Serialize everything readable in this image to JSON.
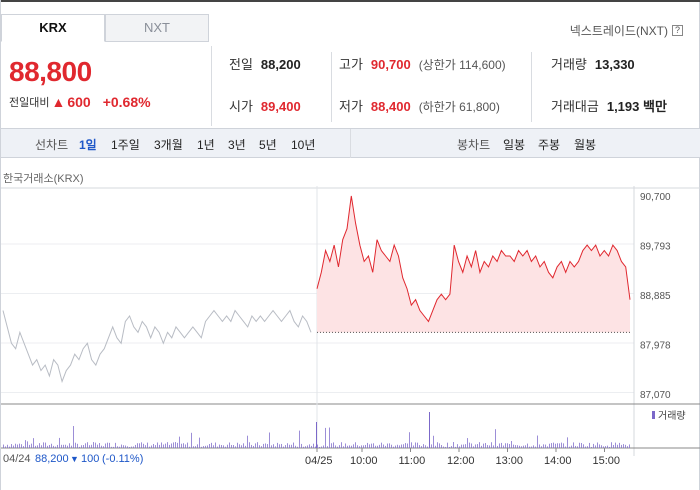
{
  "tabs": [
    {
      "label": "KRX",
      "active": true
    },
    {
      "label": "NXT",
      "active": false
    }
  ],
  "nxt_link": {
    "label": "넥스트레이드(NXT)",
    "help": "?"
  },
  "quote": {
    "price": "88,800",
    "change_label": "전일대비",
    "change_arrow": "▲",
    "change_value": "600",
    "change_pct": "+0.68%"
  },
  "stats": {
    "prev_close": {
      "label": "전일",
      "value": "88,200"
    },
    "open": {
      "label": "시가",
      "value": "89,400"
    },
    "high": {
      "label": "고가",
      "value": "90,700",
      "sub": "(상한가 114,600)"
    },
    "low": {
      "label": "저가",
      "value": "88,400",
      "sub": "(하한가 61,800)"
    },
    "volume": {
      "label": "거래량",
      "value": "13,330"
    },
    "amount": {
      "label": "거래대금",
      "value": "1,193 백만"
    }
  },
  "period": {
    "line_label": "선차트",
    "line_options": [
      "1일",
      "1주일",
      "3개월",
      "1년",
      "3년",
      "5년",
      "10년"
    ],
    "selected": "1일",
    "candle_label": "봉차트",
    "candle_options": [
      "일봉",
      "주봉",
      "월봉"
    ]
  },
  "exchange_label": "한국거래소(KRX)",
  "volume_legend": "거래량",
  "colors": {
    "up": "#e0282f",
    "down": "#1e57c8",
    "prev_line": "#b8bcc4",
    "fill": "#fde3e4",
    "volume": "#7b68c9"
  },
  "chart_data": {
    "type": "line",
    "y_ticks": [
      "90,700",
      "89,793",
      "88,885",
      "87,978",
      "87,070"
    ],
    "ylim": [
      87070,
      90700
    ],
    "x_ticks": [
      "04/25",
      "10:00",
      "11:00",
      "12:00",
      "13:00",
      "14:00",
      "15:00"
    ],
    "series": [
      {
        "name": "04/24",
        "values": [
          88600,
          88300,
          88000,
          87900,
          88200,
          88000,
          87800,
          87600,
          87700,
          87500,
          87600,
          87400,
          87700,
          87600,
          87300,
          87500,
          87600,
          87800,
          87700,
          87900,
          88000,
          87700,
          87600,
          87800,
          87900,
          88100,
          88300,
          88100,
          88000,
          88400,
          88500,
          88300,
          88200,
          88400,
          88300,
          88100,
          88300,
          88200,
          88000,
          88200,
          88100,
          88300,
          88200,
          88100,
          88200,
          88300,
          88200,
          88100,
          88400,
          88500,
          88600,
          88500,
          88400,
          88500,
          88400,
          88600,
          88500,
          88400,
          88300,
          88500,
          88400,
          88500,
          88400,
          88500,
          88600,
          88500,
          88400,
          88500,
          88600,
          88400,
          88300,
          88500,
          88400,
          88200
        ]
      },
      {
        "name": "04/25",
        "values": [
          89000,
          89300,
          89700,
          89500,
          89800,
          89400,
          89900,
          90100,
          90700,
          90200,
          89800,
          89500,
          89600,
          89300,
          89900,
          89700,
          89600,
          89500,
          89800,
          89600,
          89200,
          89000,
          88700,
          88800,
          88600,
          88500,
          88400,
          88600,
          88800,
          88900,
          88800,
          88900,
          89800,
          89500,
          89300,
          89600,
          89400,
          89700,
          89300,
          89500,
          89400,
          89600,
          89500,
          89700,
          89600,
          89600,
          89500,
          89700,
          89600,
          89700,
          89500,
          89600,
          89400,
          89500,
          89300,
          89200,
          89400,
          89500,
          89300,
          89500,
          89400,
          89500,
          89700,
          89800,
          89700,
          89800,
          89600,
          89700,
          89600,
          89800,
          89700,
          89500,
          89400,
          88800
        ]
      }
    ],
    "baseline": 88200,
    "footer": {
      "date": "04/24",
      "close": "88,200",
      "arrow": "▼",
      "diff": "100",
      "pct": "(-0.11%)"
    }
  }
}
